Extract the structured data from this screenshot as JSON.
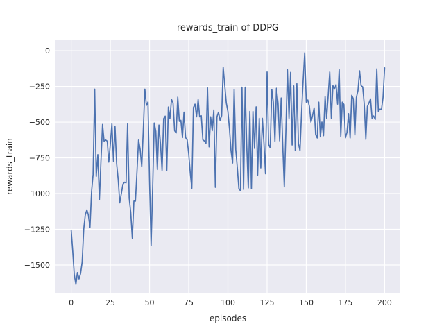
{
  "chart_data": {
    "type": "line",
    "title": "rewards_train of DDPG",
    "xlabel": "episodes",
    "ylabel": "rewards_train",
    "x_start": 0,
    "x_step": 1,
    "xlim": [
      -10,
      210
    ],
    "ylim": [
      -1699,
      78
    ],
    "xticks": [
      0,
      25,
      50,
      75,
      100,
      125,
      150,
      175,
      200
    ],
    "yticks": [
      0,
      -250,
      -500,
      -750,
      -1000,
      -1250,
      -1500
    ],
    "grid": true,
    "legend": false,
    "style": {
      "figure_background": "#ffffff",
      "axes_background": "#eaeaf2",
      "grid_color": "#ffffff",
      "line_color": "#4c72b0",
      "text_color": "#262626"
    },
    "series": [
      {
        "name": "rewards_train",
        "values": [
          -1255,
          -1400,
          -1570,
          -1636,
          -1553,
          -1597,
          -1560,
          -1480,
          -1248,
          -1150,
          -1114,
          -1150,
          -1236,
          -985,
          -865,
          -269,
          -880,
          -727,
          -1043,
          -776,
          -516,
          -633,
          -625,
          -633,
          -780,
          -650,
          -512,
          -774,
          -531,
          -790,
          -903,
          -1065,
          -1000,
          -936,
          -920,
          -925,
          -512,
          -1033,
          -1130,
          -1312,
          -1053,
          -1053,
          -840,
          -625,
          -690,
          -812,
          -560,
          -269,
          -383,
          -359,
          -900,
          -1363,
          -950,
          -506,
          -565,
          -832,
          -520,
          -657,
          -838,
          -475,
          -458,
          -838,
          -394,
          -475,
          -341,
          -365,
          -560,
          -576,
          -325,
          -495,
          -487,
          -608,
          -430,
          -608,
          -624,
          -721,
          -858,
          -963,
          -398,
          -374,
          -463,
          -342,
          -463,
          -455,
          -624,
          -632,
          -648,
          -260,
          -673,
          -463,
          -560,
          -415,
          -956,
          -463,
          -431,
          -487,
          -455,
          -116,
          -245,
          -366,
          -425,
          -550,
          -700,
          -786,
          -271,
          -690,
          -820,
          -965,
          -980,
          -255,
          -970,
          -255,
          -657,
          -960,
          -425,
          -967,
          -425,
          -684,
          -393,
          -870,
          -473,
          -820,
          -473,
          -650,
          -861,
          -149,
          -657,
          -680,
          -271,
          -360,
          -634,
          -263,
          -368,
          -631,
          -331,
          -671,
          -953,
          -560,
          -133,
          -473,
          -152,
          -660,
          -247,
          -700,
          -231,
          -650,
          -700,
          -430,
          -215,
          -15,
          -360,
          -345,
          -390,
          -500,
          -455,
          -400,
          -587,
          -611,
          -360,
          -603,
          -500,
          -595,
          -320,
          -473,
          -312,
          -149,
          -473,
          -245,
          -269,
          -237,
          -374,
          -133,
          -600,
          -360,
          -376,
          -610,
          -571,
          -441,
          -611,
          -312,
          -335,
          -590,
          -327,
          -279,
          -141,
          -245,
          -253,
          -374,
          -620,
          -390,
          -366,
          -337,
          -473,
          -457,
          -481,
          -128,
          -425,
          -409,
          -410,
          -327,
          -120
        ]
      }
    ]
  }
}
